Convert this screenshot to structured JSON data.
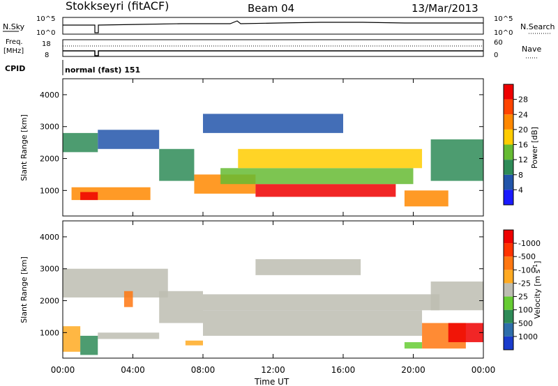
{
  "header": {
    "station": "Stokkseyri (fitACF)",
    "beam": "Beam 04",
    "date": "13/Mar/2013"
  },
  "noise_panel": {
    "left_label": "N.Sky",
    "right_label": "N.Search",
    "left_ticks": [
      "10^5",
      "10^0"
    ],
    "right_ticks": [
      "10^5",
      "10^0"
    ]
  },
  "freq_panel": {
    "left_label_1": "Freq.",
    "left_label_2": "[MHz]",
    "right_label": "Nave",
    "left_ticks": [
      "18",
      "8"
    ],
    "right_ticks": [
      "60",
      "0"
    ]
  },
  "cpid": {
    "label": "CPID",
    "value": "normal (fast) 151"
  },
  "x_axis": {
    "label": "Time UT",
    "ticks": [
      "00:00",
      "04:00",
      "08:00",
      "12:00",
      "16:00",
      "20:00",
      "00:00"
    ]
  },
  "chart_data": [
    {
      "type": "heatmap",
      "title": "",
      "xlabel": "Time UT",
      "ylabel": "Slant Range [km]",
      "x_ticks": [
        "00:00",
        "04:00",
        "08:00",
        "12:00",
        "16:00",
        "20:00",
        "00:00"
      ],
      "y_ticks": [
        1000,
        2000,
        3000,
        4000
      ],
      "xlim_hours": [
        0,
        24
      ],
      "ylim_km": [
        200,
        4500
      ],
      "colorbar": {
        "label": "Power [dB]",
        "ticks": [
          "4",
          "8",
          "12",
          "16",
          "20",
          "24",
          "28"
        ],
        "colors": [
          "#1a1aff",
          "#2255aa",
          "#2e8b57",
          "#66bb33",
          "#ffcc00",
          "#ff8800",
          "#ff4400",
          "#ee0000"
        ]
      },
      "regions": [
        {
          "t0": 0.0,
          "t1": 2.0,
          "r0": 2200,
          "r1": 2800,
          "level": 2
        },
        {
          "t0": 2.0,
          "t1": 5.5,
          "r0": 2300,
          "r1": 2900,
          "level": 1
        },
        {
          "t0": 5.5,
          "t1": 7.5,
          "r0": 1300,
          "r1": 2300,
          "level": 2
        },
        {
          "t0": 0.5,
          "t1": 5.0,
          "r0": 700,
          "r1": 1100,
          "level": 5
        },
        {
          "t0": 1.0,
          "t1": 2.0,
          "r0": 700,
          "r1": 950,
          "level": 7
        },
        {
          "t0": 7.5,
          "t1": 11.0,
          "r0": 900,
          "r1": 1500,
          "level": 5
        },
        {
          "t0": 11.0,
          "t1": 19.0,
          "r0": 800,
          "r1": 1200,
          "level": 7
        },
        {
          "t0": 9.0,
          "t1": 20.0,
          "r0": 1200,
          "r1": 1700,
          "level": 3
        },
        {
          "t0": 10.0,
          "t1": 20.5,
          "r0": 1700,
          "r1": 2300,
          "level": 4
        },
        {
          "t0": 19.5,
          "t1": 22.0,
          "r0": 500,
          "r1": 1000,
          "level": 5
        },
        {
          "t0": 21.0,
          "t1": 24.0,
          "r0": 1300,
          "r1": 2600,
          "level": 2
        },
        {
          "t0": 8.0,
          "t1": 16.0,
          "r0": 2800,
          "r1": 3400,
          "level": 1
        }
      ]
    },
    {
      "type": "heatmap",
      "title": "",
      "xlabel": "Time UT",
      "ylabel": "Slant Range [km]",
      "x_ticks": [
        "00:00",
        "04:00",
        "08:00",
        "12:00",
        "16:00",
        "20:00",
        "00:00"
      ],
      "y_ticks": [
        1000,
        2000,
        3000,
        4000
      ],
      "xlim_hours": [
        0,
        24
      ],
      "ylim_km": [
        200,
        4500
      ],
      "colorbar": {
        "label": "Velocity [m s",
        "label_sup": "-1",
        "label_end": "]",
        "ticks": [
          "1000",
          "500",
          "100",
          "25",
          "-25",
          "-100",
          "-500",
          "-1000"
        ],
        "colors": [
          "#1a3ccc",
          "#2e6eaa",
          "#2e8b57",
          "#66cc33",
          "#bdbdb2",
          "#ffaa22",
          "#ff7711",
          "#ff3300",
          "#ee0000"
        ]
      },
      "regions": [
        {
          "t0": 0.0,
          "t1": 6.0,
          "r0": 2100,
          "r1": 3000,
          "color": 4
        },
        {
          "t0": 5.5,
          "t1": 8.0,
          "r0": 1300,
          "r1": 2300,
          "color": 4
        },
        {
          "t0": 8.0,
          "t1": 20.5,
          "r0": 900,
          "r1": 1700,
          "color": 4
        },
        {
          "t0": 8.0,
          "t1": 21.5,
          "r0": 1700,
          "r1": 2200,
          "color": 4
        },
        {
          "t0": 21.0,
          "t1": 24.0,
          "r0": 1700,
          "r1": 2600,
          "color": 4
        },
        {
          "t0": 2.0,
          "t1": 5.5,
          "r0": 800,
          "r1": 1000,
          "color": 4
        },
        {
          "t0": 0.0,
          "t1": 1.0,
          "r0": 400,
          "r1": 1200,
          "color": 5
        },
        {
          "t0": 1.0,
          "t1": 2.0,
          "r0": 300,
          "r1": 900,
          "color": 2
        },
        {
          "t0": 3.5,
          "t1": 4.0,
          "r0": 1800,
          "r1": 2300,
          "color": 6
        },
        {
          "t0": 7.0,
          "t1": 8.0,
          "r0": 600,
          "r1": 750,
          "color": 5
        },
        {
          "t0": 19.5,
          "t1": 20.5,
          "r0": 500,
          "r1": 700,
          "color": 3
        },
        {
          "t0": 20.5,
          "t1": 23.0,
          "r0": 500,
          "r1": 1300,
          "color": 6
        },
        {
          "t0": 22.0,
          "t1": 24.0,
          "r0": 700,
          "r1": 1300,
          "color": 8
        },
        {
          "t0": 11.0,
          "t1": 17.0,
          "r0": 2800,
          "r1": 3300,
          "color": 4
        }
      ]
    }
  ]
}
